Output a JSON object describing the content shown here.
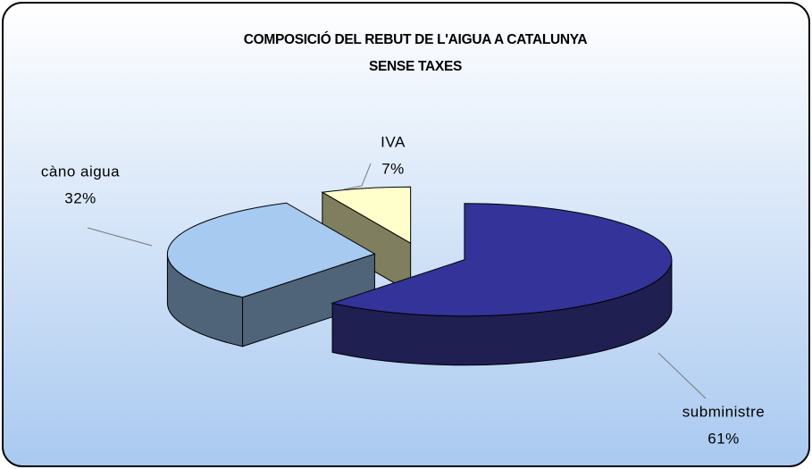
{
  "chart_data": {
    "type": "pie3d",
    "title": "COMPOSICIÓ DEL REBUT DE L'AIGUA A CATALUNYA",
    "subtitle": "SENSE TAXES",
    "categories": [
      "subministre",
      "càno aigua",
      "IVA"
    ],
    "values": [
      61,
      32,
      7
    ],
    "value_labels": [
      "61%",
      "32%",
      "7%"
    ],
    "colors": [
      "#333399",
      "#a6caf0",
      "#ffffcc"
    ],
    "side_colors": [
      "#1f1f52",
      "#4f6479",
      "#7f7f5f"
    ]
  }
}
